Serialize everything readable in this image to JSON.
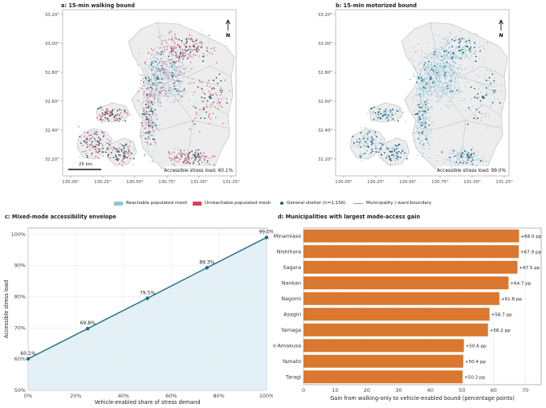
{
  "panels": {
    "a_title": "a: 15-min walking bound",
    "b_title": "b: 15-min motorized bound",
    "c_title": "c: Mixed-mode accessibility envelope",
    "d_title": "d: Municipalities with largest mode-access gain"
  },
  "maps": {
    "lat_ticks": [
      "33.20°",
      "33.00°",
      "32.80°",
      "32.60°",
      "32.40°",
      "32.20°"
    ],
    "lon_ticks": [
      "130.00°",
      "130.25°",
      "130.50°",
      "130.75°",
      "131.00°",
      "131.25°"
    ],
    "north": "N",
    "scale_label": "25 km",
    "a_load": "Accessible stress load: 60.1%",
    "b_load": "Accessible stress load: 99.0%",
    "colors": {
      "reachable": "#8fc7dc",
      "unreachable": "#d8425e",
      "shelter": "#1e5b70",
      "land": "#ededed",
      "boundary": "#b8b8b8"
    }
  },
  "legend": {
    "reachable": "Reachable populated mesh",
    "unreachable": "Unreachable populated mesh",
    "shelter": "General shelter (n=1,156)",
    "boundary": "Municipality / ward boundary"
  },
  "chart_data": [
    {
      "type": "line",
      "title": "c: Mixed-mode accessibility envelope",
      "xlabel": "Vehicle-enabled share of stress demand",
      "ylabel": "Accessible stress load",
      "x": [
        0,
        25,
        50,
        75,
        100
      ],
      "y": [
        60.1,
        69.8,
        79.5,
        89.3,
        99.0
      ],
      "point_labels": [
        "60.1%",
        "69.8%",
        "79.5%",
        "89.3%",
        "99.0%"
      ],
      "xticks": [
        "0%",
        "20%",
        "40%",
        "60%",
        "80%",
        "100%"
      ],
      "yticks": [
        "50%",
        "60%",
        "70%",
        "80%",
        "90%",
        "100%"
      ],
      "xlim": [
        0,
        100
      ],
      "ylim": [
        50,
        102
      ],
      "color": "#1b6a87",
      "fill": "#dcecf2",
      "grid": true
    },
    {
      "type": "bar",
      "orientation": "horizontal",
      "title": "d: Municipalities with largest mode-access gain",
      "xlabel": "Gain from walking-only to vehicle-enabled bound (percentage points)",
      "categories": [
        "Minamiaso",
        "Nishihara",
        "Sagara",
        "Nankan",
        "Nagomi",
        "Asagiri",
        "Yamaga",
        "Kami-Amakusa",
        "Yamato",
        "Taragi"
      ],
      "values": [
        68.0,
        67.9,
        67.5,
        64.7,
        61.8,
        58.7,
        58.2,
        50.6,
        50.4,
        50.2
      ],
      "value_labels": [
        "+68.0 pp",
        "+67.9 pp",
        "+67.5 pp",
        "+64.7 pp",
        "+61.8 pp",
        "+58.7 pp",
        "+58.2 pp",
        "+50.6 pp",
        "+50.4 pp",
        "+50.2 pp"
      ],
      "xticks": [
        "0",
        "10",
        "20",
        "30",
        "40",
        "50",
        "60",
        "70"
      ],
      "xlim": [
        0,
        75
      ],
      "color": "#d9782e",
      "grid": true
    }
  ]
}
